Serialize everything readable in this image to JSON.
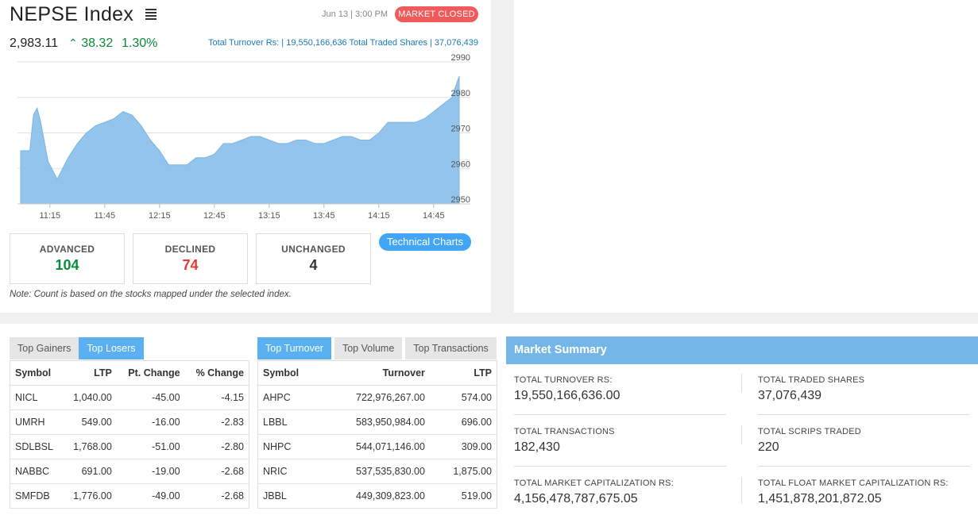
{
  "index": {
    "title": "NEPSE Index",
    "date_time": "Jun 13 | 3:00 PM",
    "market_status": "MARKET CLOSED",
    "value": "2,983.11",
    "change": "38.32",
    "percent": "1.30%",
    "turnover_text": "Total Turnover Rs: | 19,550,166,636   Total Traded Shares | 37,076,439"
  },
  "chart_data": {
    "type": "area",
    "x_ticks": [
      "11:15",
      "11:45",
      "12:15",
      "12:45",
      "13:15",
      "13:45",
      "14:15",
      "14:45"
    ],
    "y_ticks": [
      "2990",
      "2980",
      "2970",
      "2960",
      "2950"
    ],
    "ylim": [
      2950,
      2990
    ],
    "color": "#93c5ec",
    "series": [
      {
        "x": [
          "10:59",
          "11:04",
          "11:06",
          "11:08",
          "11:10",
          "11:14",
          "11:17",
          "11:19",
          "11:21",
          "11:25",
          "11:30",
          "11:35",
          "11:40",
          "11:45",
          "11:50",
          "11:55",
          "12:00",
          "12:05",
          "12:10",
          "12:15",
          "12:20",
          "12:25",
          "12:30",
          "12:35",
          "12:40",
          "12:45",
          "12:50",
          "12:55",
          "13:00",
          "13:05",
          "13:10",
          "13:15",
          "13:20",
          "13:25",
          "13:30",
          "13:35",
          "13:40",
          "13:45",
          "13:50",
          "13:55",
          "14:00",
          "14:05",
          "14:10",
          "14:15",
          "14:20",
          "14:25",
          "14:30",
          "14:35",
          "14:40",
          "14:45",
          "14:50",
          "14:55",
          "14:59"
        ],
        "values": [
          2965,
          2965,
          2975,
          2977,
          2973,
          2962,
          2959,
          2957,
          2959,
          2963,
          2967,
          2970,
          2972,
          2973,
          2974,
          2976,
          2975,
          2972,
          2968,
          2965,
          2961,
          2961,
          2961,
          2963,
          2963,
          2964,
          2967,
          2967,
          2968,
          2969,
          2969,
          2968,
          2967,
          2967,
          2968,
          2968,
          2967,
          2967,
          2968,
          2969,
          2969,
          2968,
          2968,
          2970,
          2973,
          2973,
          2973,
          2973,
          2974,
          2976,
          2978,
          2980,
          2986
        ]
      }
    ]
  },
  "stats": {
    "advanced_label": "ADVANCED",
    "advanced": "104",
    "declined_label": "DECLINED",
    "declined": "74",
    "unchanged_label": "UNCHANGED",
    "unchanged": "4",
    "tech_charts": "Technical Charts",
    "note": "Note: Count is based on the stocks mapped under the selected index."
  },
  "colors": {
    "positive": "#0a8a3a",
    "negative": "#e53935",
    "accent": "#42a5f5"
  },
  "gainers_losers": {
    "tabs": [
      "Top Gainers",
      "Top Losers"
    ],
    "headers": [
      "Symbol",
      "LTP",
      "Pt. Change",
      "% Change"
    ],
    "rows": [
      [
        "NICL",
        "1,040.00",
        "-45.00",
        "-4.15"
      ],
      [
        "UMRH",
        "549.00",
        "-16.00",
        "-2.83"
      ],
      [
        "SDLBSL",
        "1,768.00",
        "-51.00",
        "-2.80"
      ],
      [
        "NABBC",
        "691.00",
        "-19.00",
        "-2.68"
      ],
      [
        "SMFDB",
        "1,776.00",
        "-49.00",
        "-2.68"
      ]
    ]
  },
  "turnover_table": {
    "tabs": [
      "Top Turnover",
      "Top Volume",
      "Top Transactions"
    ],
    "headers": [
      "Symbol",
      "Turnover",
      "LTP"
    ],
    "rows": [
      [
        "AHPC",
        "722,976,267.00",
        "574.00"
      ],
      [
        "LBBL",
        "583,950,984.00",
        "696.00"
      ],
      [
        "NHPC",
        "544,071,146.00",
        "309.00"
      ],
      [
        "NRIC",
        "537,535,830.00",
        "1,875.00"
      ],
      [
        "JBBL",
        "449,309,823.00",
        "519.00"
      ]
    ]
  },
  "market_summary": {
    "title": "Market Summary",
    "items": [
      {
        "label": "TOTAL TURNOVER RS:",
        "value": "19,550,166,636.00"
      },
      {
        "label": "TOTAL TRADED SHARES",
        "value": "37,076,439"
      },
      {
        "label": "TOTAL TRANSACTIONS",
        "value": "182,430"
      },
      {
        "label": "TOTAL SCRIPS TRADED",
        "value": "220"
      },
      {
        "label": "TOTAL MARKET CAPITALIZATION RS:",
        "value": "4,156,478,787,675.05"
      },
      {
        "label": "TOTAL FLOAT MARKET CAPITALIZATION RS:",
        "value": "1,451,878,201,872.05"
      }
    ]
  }
}
